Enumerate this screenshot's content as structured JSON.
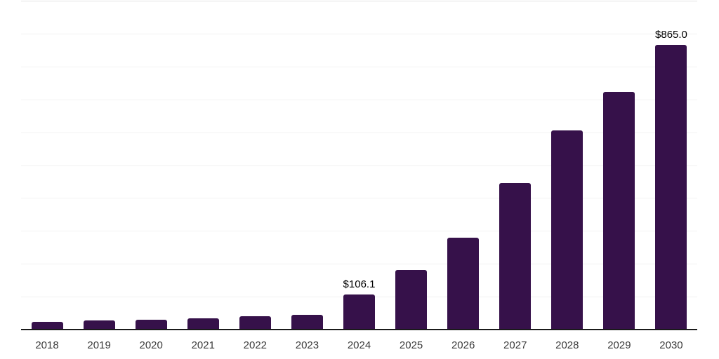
{
  "chart_data": {
    "type": "bar",
    "title": "",
    "xlabel": "",
    "ylabel": "",
    "categories": [
      "2018",
      "2019",
      "2020",
      "2021",
      "2022",
      "2023",
      "2024",
      "2025",
      "2026",
      "2027",
      "2028",
      "2029",
      "2030"
    ],
    "values": [
      23,
      28,
      30,
      34,
      40,
      45,
      106.1,
      181,
      279,
      445,
      606,
      723,
      865
    ],
    "data_labels": {
      "2024": "$106.1",
      "2030": "$865.0"
    },
    "ylim": [
      0,
      1000
    ],
    "gridline_step": 100,
    "grid": "horizontal-only",
    "legend": "none",
    "colors": {
      "bar": "#36114a",
      "axis_line": "#1a1a1a",
      "gridline": "#f2f2f2",
      "top_gridline": "#e2e2e2",
      "tick_label": "#3a3a3a",
      "data_label": "#000000"
    }
  }
}
